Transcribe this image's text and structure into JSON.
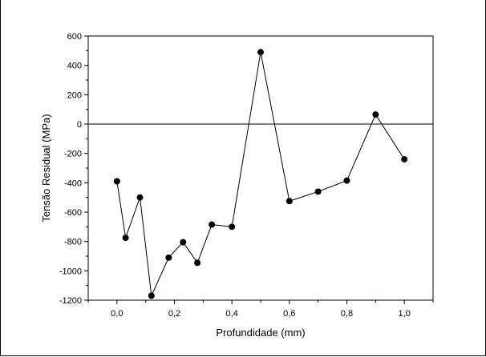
{
  "chart_data": {
    "type": "scatter",
    "connected": true,
    "xlabel": "Profundidade (mm)",
    "ylabel": "Tensão Residual (MPa)",
    "xlim": [
      -0.1,
      1.1
    ],
    "ylim": [
      -1200,
      600
    ],
    "x_ticks": [
      0.0,
      0.2,
      0.4,
      0.6,
      0.8,
      1.0
    ],
    "x_tick_labels": [
      "0,0",
      "0,2",
      "0,4",
      "0,6",
      "0,8",
      "1,0"
    ],
    "y_ticks": [
      -1200,
      -1000,
      -800,
      -600,
      -400,
      -200,
      0,
      200,
      400,
      600
    ],
    "y_tick_labels": [
      "-1200",
      "-1000",
      "-800",
      "-600",
      "-400",
      "-200",
      "0",
      "200",
      "400",
      "600"
    ],
    "reference_line_y": 0,
    "grid": false,
    "series": [
      {
        "color": "#000000",
        "x": [
          0.0,
          0.03,
          0.08,
          0.12,
          0.18,
          0.23,
          0.28,
          0.33,
          0.4,
          0.5,
          0.6,
          0.7,
          0.8,
          0.9,
          1.0
        ],
        "y": [
          -390,
          -775,
          -500,
          -1170,
          -910,
          -805,
          -945,
          -685,
          -700,
          490,
          -525,
          -460,
          -385,
          65,
          -240
        ]
      }
    ]
  }
}
